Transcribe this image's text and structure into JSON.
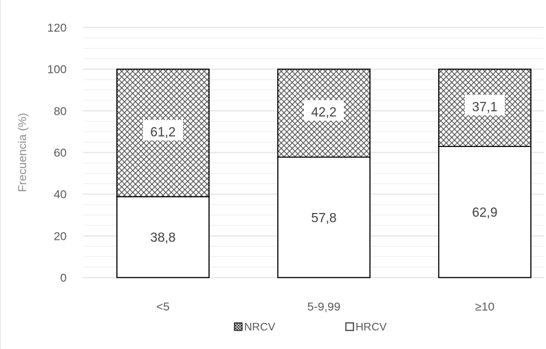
{
  "chart_data": {
    "type": "bar",
    "stacked": true,
    "categories": [
      "<5",
      "5-9,99",
      "≥10"
    ],
    "series": [
      {
        "name": "HRCV",
        "values": [
          38.8,
          57.8,
          62.9
        ],
        "labels": [
          "38,8",
          "57,8",
          "62,9"
        ],
        "fill": "#ffffff"
      },
      {
        "name": "NRCV",
        "values": [
          61.2,
          42.2,
          37.1
        ],
        "labels": [
          "61,2",
          "42,2",
          "37,1"
        ],
        "fill": "crosshatch"
      }
    ],
    "ylabel": "Frecuencia (%)",
    "xlabel": "",
    "ylim": [
      0,
      120
    ],
    "yticks": [
      "0",
      "20",
      "40",
      "60",
      "80",
      "100",
      "120"
    ],
    "grid": true,
    "legend": {
      "placement": "bottom",
      "order": [
        "NRCV",
        "HRCV"
      ]
    },
    "colors": {
      "border": "#000000",
      "grid": "#d9d9d9",
      "hatch": "#595959"
    }
  }
}
